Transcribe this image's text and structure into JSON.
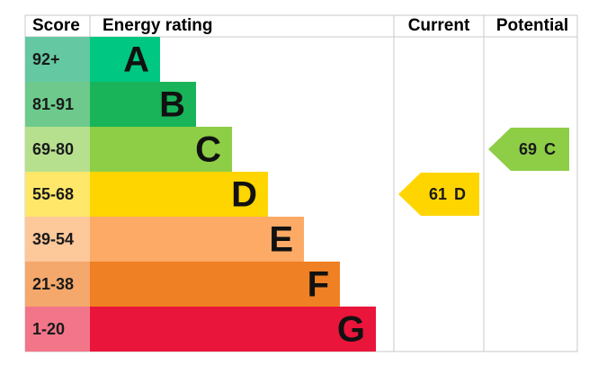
{
  "header": {
    "score": "Score",
    "rating": "Energy rating",
    "current": "Current",
    "potential": "Potential"
  },
  "bands": [
    {
      "score": "92+",
      "letter": "A",
      "color": "#00c781",
      "score_color": "#64c8a2"
    },
    {
      "score": "81-91",
      "letter": "B",
      "color": "#19b459",
      "score_color": "#6dca8c"
    },
    {
      "score": "69-80",
      "letter": "C",
      "color": "#8dce46",
      "score_color": "#b6e08e"
    },
    {
      "score": "55-68",
      "letter": "D",
      "color": "#ffd500",
      "score_color": "#ffe76a"
    },
    {
      "score": "39-54",
      "letter": "E",
      "color": "#fcaa65",
      "score_color": "#fdc89a"
    },
    {
      "score": "21-38",
      "letter": "F",
      "color": "#ef8023",
      "score_color": "#f4a86b"
    },
    {
      "score": "1-20",
      "letter": "G",
      "color": "#e9153b",
      "score_color": "#f27589"
    }
  ],
  "current": {
    "score": 61,
    "rating": "D"
  },
  "potential": {
    "score": 69,
    "rating": "C"
  }
}
